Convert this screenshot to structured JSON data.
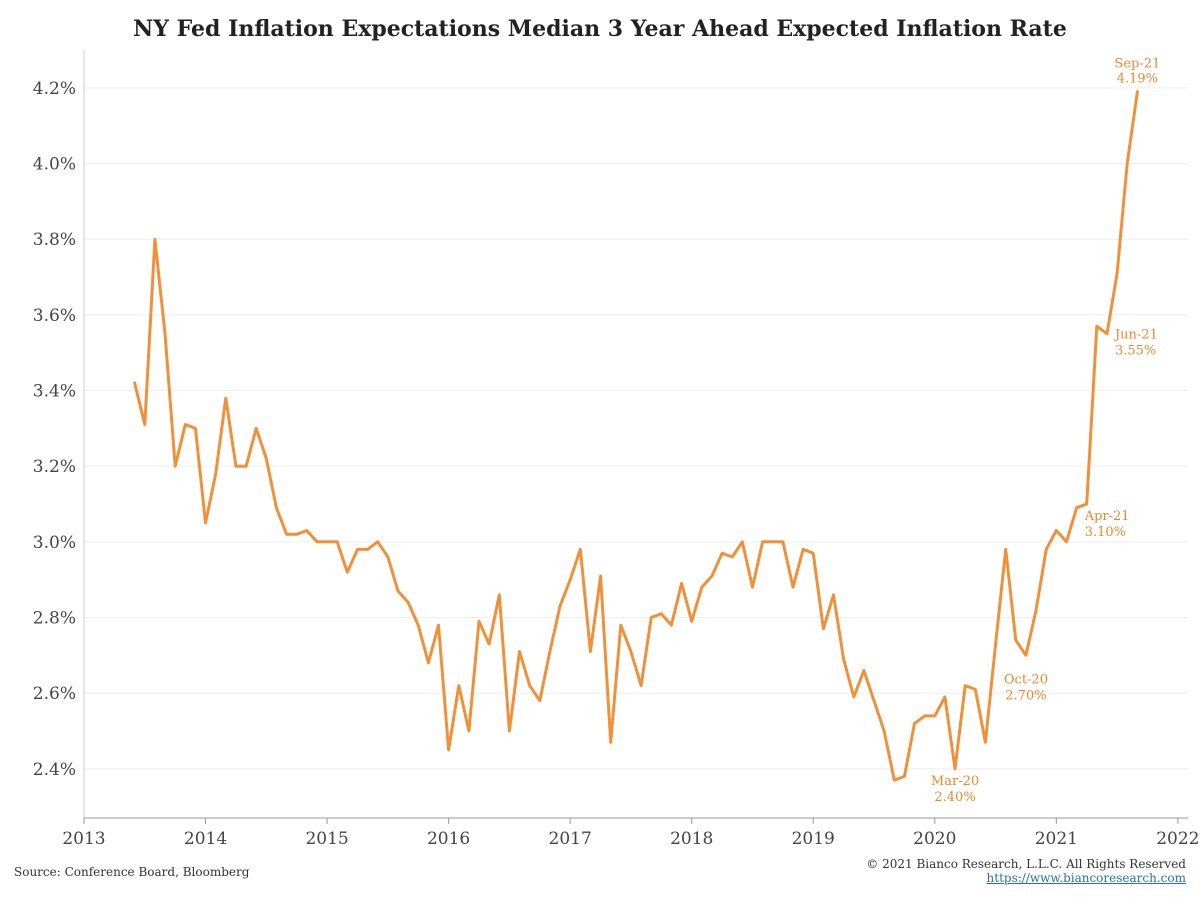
{
  "title": "NY Fed Inflation Expectations Median 3 Year Ahead Expected Inflation Rate",
  "source": "Source: Conference Board, Bloomberg",
  "copyright": "© 2021 Bianco Research, L.L.C. All Rights Reserved",
  "website": "https://www.biancoresearch.com",
  "colors": {
    "line": "#F0913A",
    "annotation": "#E8892F",
    "grid": "#eeeeee",
    "axis_text": "#444444"
  },
  "chart_data": {
    "type": "line",
    "title": "NY Fed Inflation Expectations Median 3 Year Ahead Expected Inflation Rate",
    "xlabel": "",
    "ylabel": "",
    "x_ticks": [
      "2013",
      "2014",
      "2015",
      "2016",
      "2017",
      "2018",
      "2019",
      "2020",
      "2021",
      "2022"
    ],
    "y_ticks": [
      "2.4%",
      "2.6%",
      "2.8%",
      "3.0%",
      "3.2%",
      "3.4%",
      "3.6%",
      "3.8%",
      "4.0%",
      "4.2%"
    ],
    "xlim": [
      "2013-01",
      "2022-02"
    ],
    "ylim": [
      2.27,
      4.3
    ],
    "grid": "horizontal",
    "series": [
      {
        "x": [
          "2013-06",
          "2013-07",
          "2013-08",
          "2013-09",
          "2013-10",
          "2013-11",
          "2013-12",
          "2014-01",
          "2014-02",
          "2014-03",
          "2014-04",
          "2014-05",
          "2014-06",
          "2014-07",
          "2014-08",
          "2014-09",
          "2014-10",
          "2014-11",
          "2014-12",
          "2015-01",
          "2015-02",
          "2015-03",
          "2015-04",
          "2015-05",
          "2015-06",
          "2015-07",
          "2015-08",
          "2015-09",
          "2015-10",
          "2015-11",
          "2015-12",
          "2016-01",
          "2016-02",
          "2016-03",
          "2016-04",
          "2016-05",
          "2016-06",
          "2016-07",
          "2016-08",
          "2016-09",
          "2016-10",
          "2016-11",
          "2016-12",
          "2017-01",
          "2017-02",
          "2017-03",
          "2017-04",
          "2017-05",
          "2017-06",
          "2017-07",
          "2017-08",
          "2017-09",
          "2017-10",
          "2017-11",
          "2017-12",
          "2018-01",
          "2018-02",
          "2018-03",
          "2018-04",
          "2018-05",
          "2018-06",
          "2018-07",
          "2018-08",
          "2018-09",
          "2018-10",
          "2018-11",
          "2018-12",
          "2019-01",
          "2019-02",
          "2019-03",
          "2019-04",
          "2019-05",
          "2019-06",
          "2019-07",
          "2019-08",
          "2019-09",
          "2019-10",
          "2019-11",
          "2019-12",
          "2020-01",
          "2020-02",
          "2020-03",
          "2020-04",
          "2020-05",
          "2020-06",
          "2020-07",
          "2020-08",
          "2020-09",
          "2020-10",
          "2020-11",
          "2020-12",
          "2021-01",
          "2021-02",
          "2021-03",
          "2021-04",
          "2021-05",
          "2021-06",
          "2021-07",
          "2021-08",
          "2021-09"
        ],
        "values": [
          3.42,
          3.31,
          3.8,
          3.55,
          3.2,
          3.31,
          3.3,
          3.05,
          3.18,
          3.38,
          3.2,
          3.2,
          3.3,
          3.22,
          3.09,
          3.02,
          3.02,
          3.03,
          3.0,
          3.0,
          3.0,
          2.92,
          2.98,
          2.98,
          3.0,
          2.96,
          2.87,
          2.84,
          2.78,
          2.68,
          2.78,
          2.45,
          2.62,
          2.5,
          2.79,
          2.73,
          2.86,
          2.5,
          2.71,
          2.62,
          2.58,
          2.71,
          2.83,
          2.9,
          2.98,
          2.71,
          2.91,
          2.47,
          2.78,
          2.71,
          2.62,
          2.8,
          2.81,
          2.78,
          2.89,
          2.79,
          2.88,
          2.91,
          2.97,
          2.96,
          3.0,
          2.88,
          3.0,
          3.0,
          3.0,
          2.88,
          2.98,
          2.97,
          2.77,
          2.86,
          2.69,
          2.59,
          2.66,
          2.58,
          2.5,
          2.37,
          2.38,
          2.52,
          2.54,
          2.54,
          2.59,
          2.4,
          2.62,
          2.61,
          2.47,
          2.73,
          2.98,
          2.74,
          2.7,
          2.82,
          2.98,
          3.03,
          3.0,
          3.09,
          3.1,
          3.57,
          3.55,
          3.71,
          4.0,
          4.19
        ]
      }
    ],
    "annotations": [
      {
        "label": "Sep-21",
        "value_label": "4.19%",
        "x": "2021-09",
        "y": 4.19
      },
      {
        "label": "Jun-21",
        "value_label": "3.55%",
        "x": "2021-06",
        "y": 3.55
      },
      {
        "label": "Apr-21",
        "value_label": "3.10%",
        "x": "2021-04",
        "y": 3.1
      },
      {
        "label": "Oct-20",
        "value_label": "2.70%",
        "x": "2020-10",
        "y": 2.7
      },
      {
        "label": "Mar-20",
        "value_label": "2.40%",
        "x": "2020-03",
        "y": 2.4
      }
    ]
  }
}
